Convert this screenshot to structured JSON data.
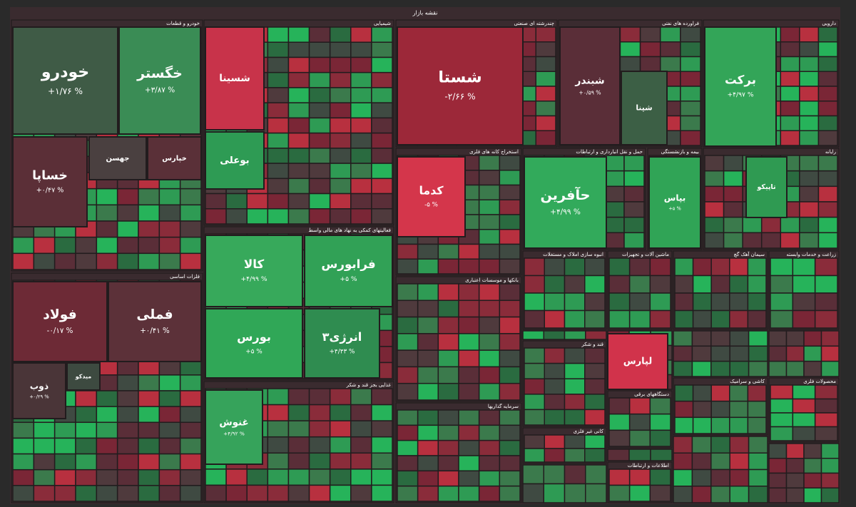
{
  "title": "نقشه بازار",
  "sectors": [
    "خودرو و قطعات",
    "شیمیایی",
    "چندرشته ای صنعتی",
    "فراورده های نفتی",
    "دارویی",
    "فعالیتهای کمکی به نهاد های مالی واسط",
    "استخراج کانه های فلزی",
    "حمل و نقل انبارداری و ارتباطات",
    "بیمه و بازنشستگی",
    "رایانه",
    "فلزات اساسی",
    "بانکها و موسسات اعتباری",
    "انبوه سازی املاک و مستغلات",
    "ماشین آلات و تجهیزات",
    "سیمان آهک گچ",
    "زراعت و خدمات وابسته",
    "غذایی بجز قند و شکر",
    "سرمایه گذاریها",
    "قند و شکر",
    "کاشی و سرامیک",
    "دستگاههای برقی",
    "کانی غیر فلزی",
    "اطلاعات و ارتباطات",
    "محصولات فلزی"
  ],
  "tiles": [
    {
      "name": "خودرو",
      "change": "+۱/۷۶ %"
    },
    {
      "name": "خگستر",
      "change": "+۳/۸۷ %"
    },
    {
      "name": "خساپا",
      "change": "+۰/۴۷ %"
    },
    {
      "name": "جهسن"
    },
    {
      "name": "خپارس"
    },
    {
      "name": "شستا",
      "change": "-۲/۶۶ %"
    },
    {
      "name": "برکت",
      "change": "+۴/۹۷ %"
    },
    {
      "name": "شبندر",
      "change": "+۰/۵۹ %"
    },
    {
      "name": "شپنا"
    },
    {
      "name": "شسینا"
    },
    {
      "name": "بوعلی"
    },
    {
      "name": "کالا",
      "change": "+۴/۹۹ %"
    },
    {
      "name": "فرابورس",
      "change": "+۵ %"
    },
    {
      "name": "بورس",
      "change": "+۵ %"
    },
    {
      "name": "انرژی۳",
      "change": "+۴/۴۳ %"
    },
    {
      "name": "کدما",
      "change": "-۵ %"
    },
    {
      "name": "حآفرین",
      "change": "+۴/۹۹ %"
    },
    {
      "name": "بپاس",
      "change": "+۵ %"
    },
    {
      "name": "تاپیکو"
    },
    {
      "name": "فولاد",
      "change": "-۰/۱۷ %"
    },
    {
      "name": "فملی",
      "change": "+۰/۴۱ %"
    },
    {
      "name": "ذوب",
      "change": "+۰/۲۹ %"
    },
    {
      "name": "میدکو"
    },
    {
      "name": "غنوش",
      "change": "+۴/۹۲ %"
    },
    {
      "name": "لپارس"
    }
  ]
}
